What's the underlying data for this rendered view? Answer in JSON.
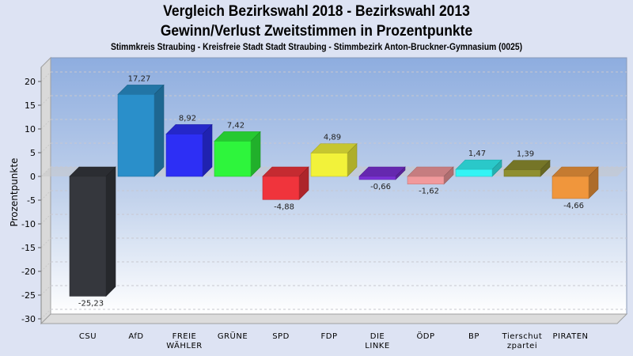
{
  "chart_data": {
    "type": "bar",
    "title": "Vergleich Bezirkswahl 2018 - Bezirkswahl 2013",
    "subtitle": "Gewinn/Verlust Zweitstimmen in Prozentpunkte",
    "subsubtitle": "Stimmkreis Straubing - Kreisfreie Stadt Stadt Straubing - Stimmbezirk Anton-Bruckner-Gymnasium (0025)",
    "xlabel": "",
    "ylabel": "Prozentpunkte",
    "ylim": [
      -30,
      20
    ],
    "yticks": [
      20,
      15,
      10,
      5,
      0,
      -5,
      -10,
      -15,
      -20,
      -25,
      -30
    ],
    "ytick_labels": [
      "20",
      "15",
      "10",
      "5",
      "0",
      "-5",
      "-10",
      "-15",
      "-20",
      "-25",
      "-30"
    ],
    "grid": true,
    "style": "3d",
    "categories": [
      [
        "CSU"
      ],
      [
        "AfD"
      ],
      [
        "FREIE",
        "WÄHLER"
      ],
      [
        "GRÜNE"
      ],
      [
        "SPD"
      ],
      [
        "FDP"
      ],
      [
        "DIE",
        "LINKE"
      ],
      [
        "ÖDP"
      ],
      [
        "BP"
      ],
      [
        "Tierschut",
        "zpartei"
      ],
      [
        "PIRATEN"
      ]
    ],
    "values": [
      -25.23,
      17.27,
      8.92,
      7.42,
      -4.88,
      4.89,
      -0.66,
      -1.62,
      1.47,
      1.39,
      -4.66
    ],
    "value_labels": [
      "-25,23",
      "17,27",
      "8,92",
      "7,42",
      "-4,88",
      "4,89",
      "-0,66",
      "-1,62",
      "1,47",
      "1,39",
      "-4,66"
    ],
    "colors": [
      "#35373d",
      "#2a8fca",
      "#2d2ff5",
      "#2ef53c",
      "#f0343c",
      "#f2f23a",
      "#7b31d6",
      "#f1999c",
      "#33f4f5",
      "#8f8f30",
      "#f0963c"
    ]
  }
}
